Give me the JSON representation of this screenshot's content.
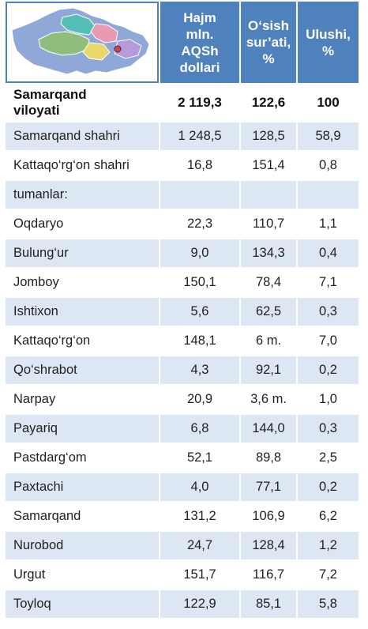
{
  "header": {
    "col_volume": [
      "Hajm",
      "mln.",
      "AQSh",
      "dollari"
    ],
    "col_growth": [
      "O‘sish",
      "sur’ati,",
      "%"
    ],
    "col_share": [
      "Ulushi,",
      "%"
    ],
    "map_icon": "region-map-icon",
    "map_colors": {
      "header_bg": "#4f81bd",
      "row_stripe": "#dde6f3",
      "map_base": "#8fa8d8",
      "map_green": "#8fbe7c",
      "map_teal": "#56bfb5",
      "map_pink": "#e79ab0",
      "map_yellow": "#e8d86b",
      "map_lilac": "#b79ad9",
      "map_red": "#d5424f"
    }
  },
  "total": {
    "name": [
      "Samarqand",
      "viloyati"
    ],
    "volume": "2 119,3",
    "growth": "122,6",
    "share": "100"
  },
  "rows": [
    {
      "name": "Samarqand  shahri",
      "volume": "1 248,5",
      "growth": "128,5",
      "share": "58,9"
    },
    {
      "name": "Kattaqo‘rg‘on shahri",
      "volume": "16,8",
      "growth": "151,4",
      "share": "0,8"
    },
    {
      "name": "tumanlar:",
      "volume": "",
      "growth": "",
      "share": ""
    },
    {
      "name": "Oqdaryo",
      "volume": "22,3",
      "growth": "110,7",
      "share": "1,1"
    },
    {
      "name": "Bulung‘ur",
      "volume": "9,0",
      "growth": "134,3",
      "share": "0,4"
    },
    {
      "name": "Jomboy",
      "volume": "150,1",
      "growth": "78,4",
      "share": "7,1"
    },
    {
      "name": "Ishtixon",
      "volume": "5,6",
      "growth": "62,5",
      "share": "0,3"
    },
    {
      "name": "Kattaqo‘rg‘on",
      "volume": "148,1",
      "growth": "6 m.",
      "share": "7,0"
    },
    {
      "name": "Qo‘shrabot",
      "volume": "4,3",
      "growth": "92,1",
      "share": "0,2"
    },
    {
      "name": "Narpay",
      "volume": "20,9",
      "growth": "3,6 m.",
      "share": "1,0"
    },
    {
      "name": "Payariq",
      "volume": "6,8",
      "growth": "144,0",
      "share": "0,3"
    },
    {
      "name": "Pastdarg‘om",
      "volume": "52,1",
      "growth": "89,8",
      "share": "2,5"
    },
    {
      "name": "Paxtachi",
      "volume": "4,0",
      "growth": "77,1",
      "share": "0,2"
    },
    {
      "name": "Samarqand",
      "volume": "131,2",
      "growth": "106,9",
      "share": "6,2"
    },
    {
      "name": "Nurobod",
      "volume": "24,7",
      "growth": "128,4",
      "share": "1,2"
    },
    {
      "name": "Urgut",
      "volume": "151,7",
      "growth": "116,7",
      "share": "7,2"
    },
    {
      "name": "Toyloq",
      "volume": "122,9",
      "growth": "85,1",
      "share": "5,8"
    }
  ]
}
